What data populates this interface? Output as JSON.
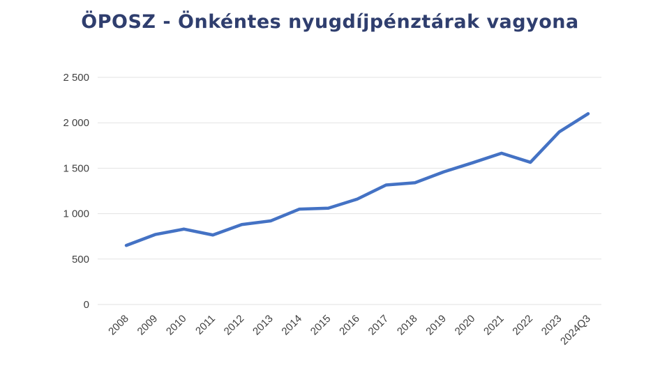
{
  "chart_data": {
    "type": "line",
    "title": "ÖPOSZ - Önkéntes nyugdíjpénztárak vagyona",
    "xlabel": "",
    "ylabel": "",
    "categories": [
      "2008",
      "2009",
      "2010",
      "2011",
      "2012",
      "2013",
      "2014",
      "2015",
      "2016",
      "2017",
      "2018",
      "2019",
      "2020",
      "2021",
      "2022",
      "2023",
      "2024Q3"
    ],
    "series": [
      {
        "values": [
          650,
          770,
          830,
          765,
          880,
          920,
          1050,
          1060,
          1160,
          1315,
          1340,
          1460,
          1560,
          1665,
          1565,
          1900,
          2100
        ],
        "color": "#4472c4"
      }
    ],
    "y_ticks": [
      0,
      500,
      1000,
      1500,
      2000,
      2500
    ],
    "y_tick_labels": [
      "0",
      "500",
      "1 000",
      "1 500",
      "2 000",
      "2 500"
    ],
    "ylim": [
      0,
      2500
    ],
    "grid": true,
    "legend": "none",
    "title_color": "#2f3e6e"
  }
}
